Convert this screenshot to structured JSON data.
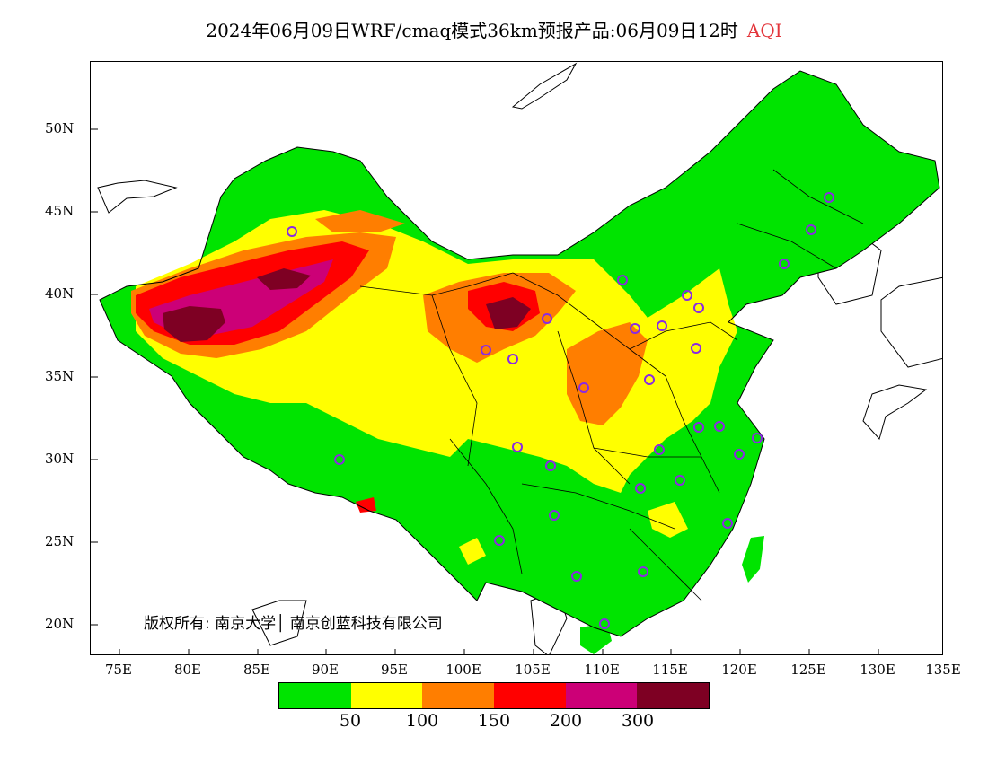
{
  "title": {
    "main": "2024年06月09日WRF/cmaq模式36km预报产品:06月09日12时",
    "variable": "AQI"
  },
  "axes": {
    "lat_ticks": [
      "50N",
      "45N",
      "40N",
      "35N",
      "30N",
      "25N",
      "20N"
    ],
    "lon_ticks": [
      "75E",
      "80E",
      "85E",
      "90E",
      "95E",
      "100E",
      "105E",
      "110E",
      "115E",
      "120E",
      "125E",
      "130E",
      "135E"
    ]
  },
  "copyright": "版权所有: 南京大学│ 南京创蓝科技有限公司",
  "legend": {
    "colors": [
      "#00e400",
      "#ffff00",
      "#ff7e00",
      "#ff0000",
      "#cc0077",
      "#7e0023"
    ],
    "labels": [
      "50",
      "100",
      "150",
      "200",
      "300"
    ]
  },
  "colors": {
    "good": "#00e400",
    "moderate": "#ffff00",
    "usg": "#ff7e00",
    "unhealthy": "#ff0000",
    "very_unhealthy": "#cc0077",
    "hazardous": "#7e0023",
    "station_marker": "#8a2be2"
  }
}
